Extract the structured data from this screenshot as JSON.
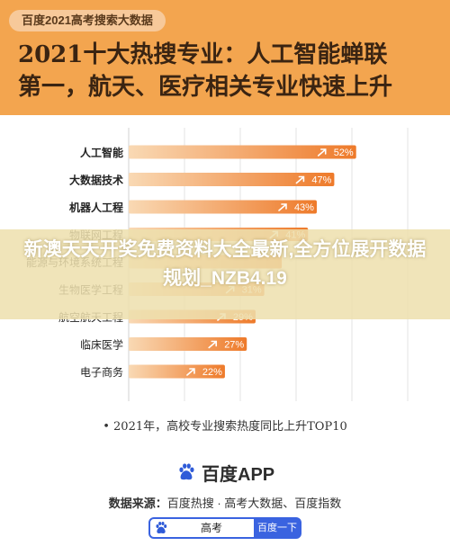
{
  "header": {
    "tag": "百度2021高考搜索大数据",
    "title": "2021十大热搜专业：人工智能蝉联\n第一，航天、医疗相关专业快速上升"
  },
  "chart_data": {
    "type": "bar",
    "orientation": "horizontal",
    "categories": [
      "人工智能",
      "大数据技术",
      "机器人工程",
      "物联网工程",
      "能源与环境系统工程",
      "生物医学工程",
      "航空航天工程",
      "临床医学",
      "电子商务"
    ],
    "values": [
      52,
      47,
      43,
      41,
      35,
      31,
      29,
      27,
      22
    ],
    "value_labels": [
      "52%",
      "47%",
      "43%",
      "41%",
      "",
      "31%",
      "29%",
      "27%",
      "22%"
    ],
    "bold_categories": [
      0,
      1,
      2
    ],
    "xlim": [
      0,
      100
    ],
    "footnote": "• 2021年，高校专业搜索热度同比上升TOP10",
    "colors": {
      "bar_start": "#f9d9b4",
      "bar_end": "#ee7a2a",
      "grid": "#e3e3e3"
    }
  },
  "overlay": {
    "text": "新澳天天开奖免费资料大全最新,全方位展开数据规划_NZB4.19"
  },
  "app": {
    "name": "百度APP",
    "icon": "baidu-paw-icon"
  },
  "source": {
    "label": "数据来源：",
    "value": "百度热搜 · 高考大数据、百度指数"
  },
  "search": {
    "query": "高考",
    "button": "百度一下"
  }
}
